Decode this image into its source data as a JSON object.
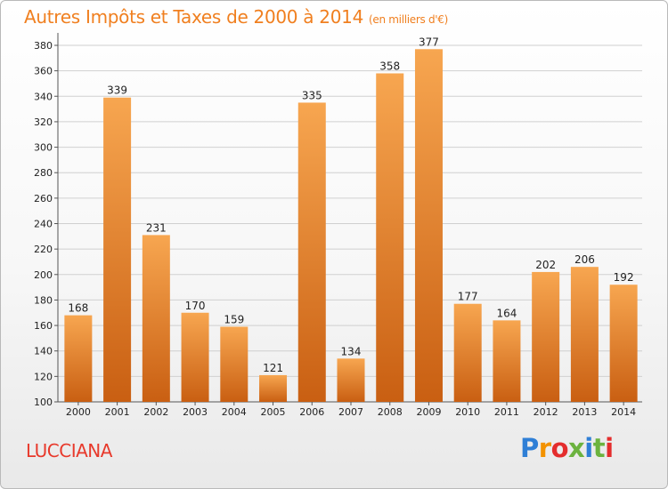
{
  "header": {
    "title": "Autres Impôts et Taxes de 2000 à 2014",
    "unit": "(en milliers d'€)"
  },
  "footer": {
    "commune": "LUCCIANA",
    "logo": [
      "P",
      "r",
      "o",
      "x",
      "i",
      "t",
      "i"
    ]
  },
  "colors": {
    "bar_top": "#f7a650",
    "bar_bottom": "#c95f12",
    "title": "#f07f1f",
    "commune": "#e8392b",
    "grid": "#d0d0d0"
  },
  "chart_data": {
    "type": "bar",
    "title": "Autres Impôts et Taxes de 2000 à 2014",
    "xlabel": "",
    "ylabel": "",
    "categories": [
      "2000",
      "2001",
      "2002",
      "2003",
      "2004",
      "2005",
      "2006",
      "2007",
      "2008",
      "2009",
      "2010",
      "2011",
      "2012",
      "2013",
      "2014"
    ],
    "values": [
      168,
      339,
      231,
      170,
      159,
      121,
      335,
      134,
      358,
      377,
      177,
      164,
      202,
      206,
      192
    ],
    "ylim": [
      100,
      380
    ],
    "yticks": [
      100,
      120,
      140,
      160,
      180,
      200,
      220,
      240,
      260,
      280,
      300,
      320,
      340,
      360,
      380
    ],
    "grid": true,
    "legend": "none"
  }
}
